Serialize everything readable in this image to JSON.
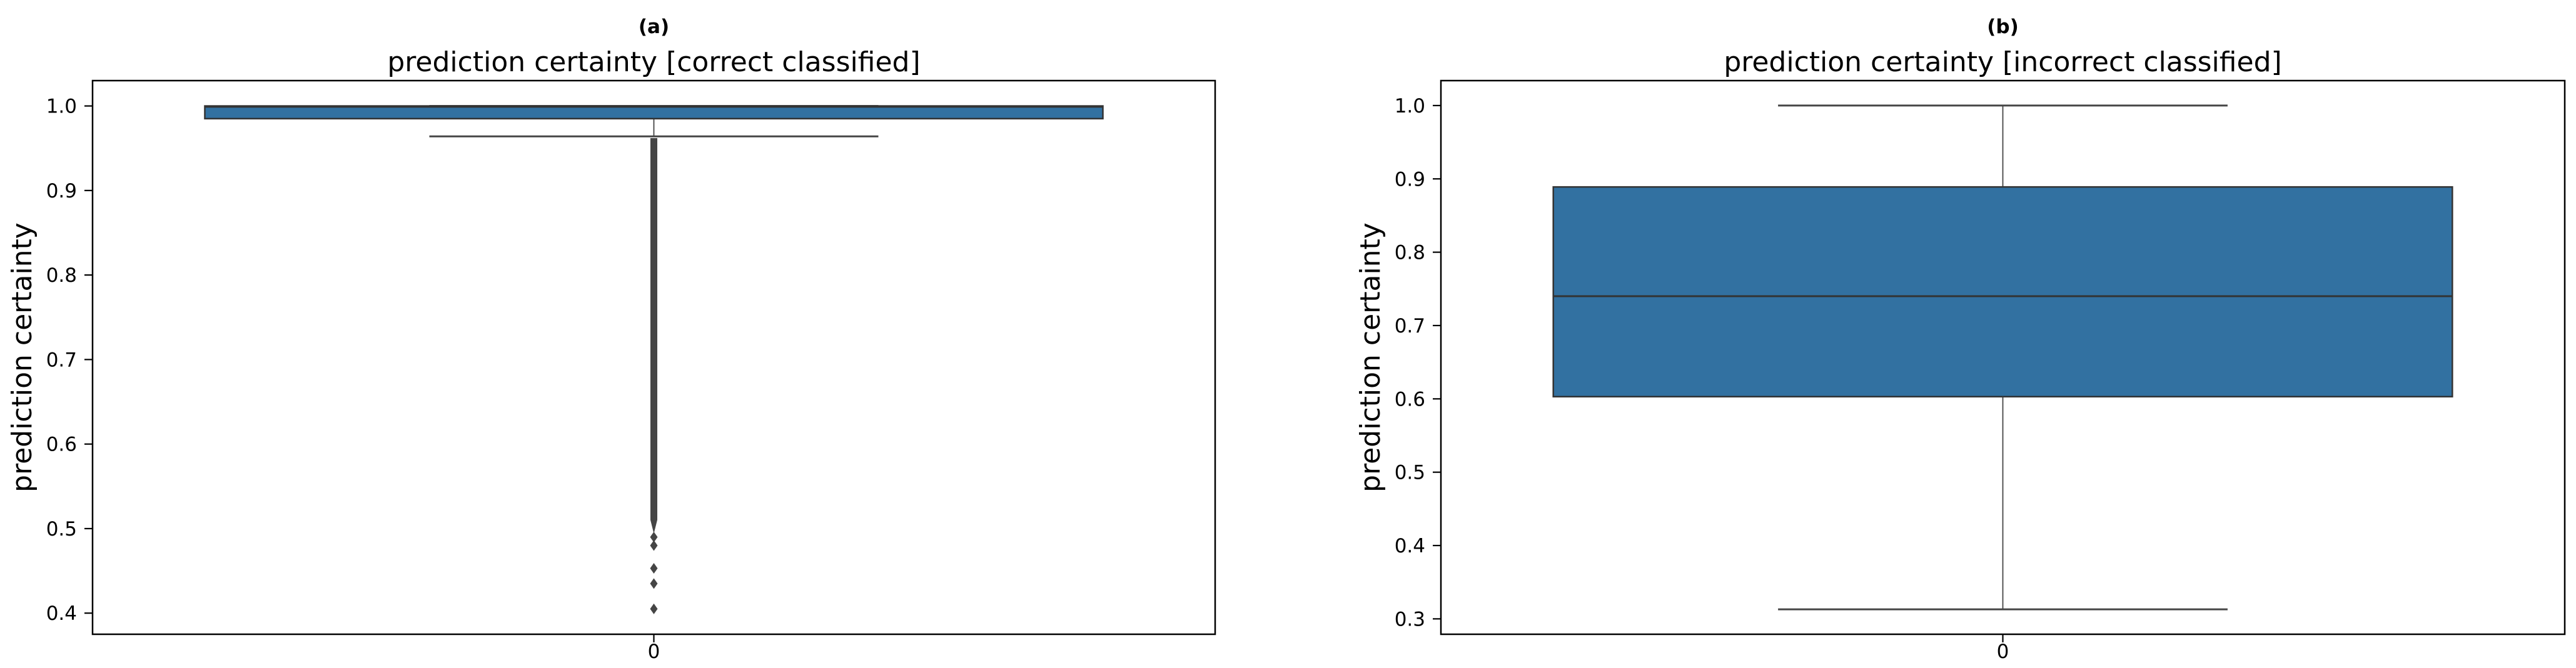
{
  "figure": {
    "background": "#ffffff",
    "style": {
      "box_fill": "#3271a1",
      "box_edge": "#333333",
      "median_color": "#333333",
      "whisker_color": "#454545",
      "cap_color": "#454545",
      "flier_color": "#454545",
      "spine_color": "#000000",
      "text_color": "#000000"
    }
  },
  "chart_data": [
    {
      "type": "box",
      "panel_label": "(a)",
      "title": "prediction certainty  [correct classified]",
      "ylabel": "prediction certainty",
      "xtick_label": "0",
      "legend": null,
      "grid": false,
      "yticks": [
        0.4,
        0.5,
        0.6,
        0.7,
        0.8,
        0.9,
        1.0
      ],
      "ytick_labels": [
        "0.4",
        "0.5",
        "0.6",
        "0.7",
        "0.8",
        "0.9",
        "1.0"
      ],
      "ylim": [
        0.375,
        1.03
      ],
      "box_stats": {
        "q1": 0.985,
        "median": 0.999,
        "q3": 1.0,
        "whisker_low": 0.964,
        "whisker_high": 1.0
      },
      "outlier_band": {
        "top": 0.962,
        "bottom": 0.494
      },
      "outliers": [
        0.49,
        0.48,
        0.453,
        0.435,
        0.405
      ]
    },
    {
      "type": "box",
      "panel_label": "(b)",
      "title": "prediction certainty  [incorrect classified]",
      "ylabel": "prediction certainty",
      "xtick_label": "0",
      "legend": null,
      "grid": false,
      "yticks": [
        0.3,
        0.4,
        0.5,
        0.6,
        0.7,
        0.8,
        0.9,
        1.0
      ],
      "ytick_labels": [
        "0.3",
        "0.4",
        "0.5",
        "0.6",
        "0.7",
        "0.8",
        "0.9",
        "1.0"
      ],
      "ylim": [
        0.279,
        1.034
      ],
      "box_stats": {
        "q1": 0.603,
        "median": 0.74,
        "q3": 0.889,
        "whisker_low": 0.313,
        "whisker_high": 1.0
      },
      "outlier_band": null,
      "outliers": []
    }
  ]
}
